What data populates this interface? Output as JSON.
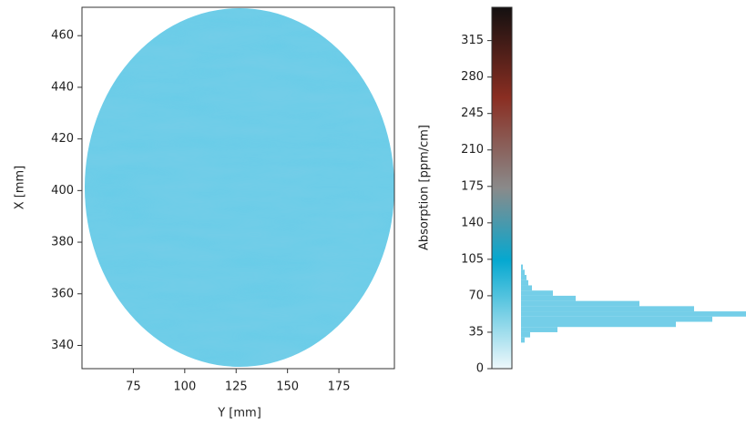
{
  "chart_data": [
    {
      "type": "heatmap",
      "xlabel": "Y [mm]",
      "ylabel": "X [mm]",
      "xlim": [
        50,
        202
      ],
      "ylim": [
        331,
        471
      ],
      "xticks": [
        75,
        100,
        125,
        150,
        175
      ],
      "yticks": [
        340,
        360,
        380,
        400,
        420,
        440,
        460
      ]
    },
    {
      "type": "colorbar",
      "ylabel": "Absorption [ppm/cm]",
      "ylim": [
        0,
        347
      ],
      "yticks": [
        0,
        35,
        70,
        105,
        140,
        175,
        210,
        245,
        280,
        315
      ]
    },
    {
      "type": "histogram",
      "orientation": "horizontal",
      "color": "#5cc6e4",
      "bins": [
        25,
        30,
        35,
        40,
        45,
        50,
        55,
        60,
        65,
        70,
        75,
        80,
        85,
        90,
        95,
        100
      ],
      "counts": [
        4,
        10,
        40,
        170,
        210,
        247,
        190,
        130,
        60,
        35,
        12,
        8,
        6,
        4,
        2
      ],
      "xlim": [
        0,
        247
      ],
      "ylim": [
        0,
        347
      ]
    }
  ]
}
